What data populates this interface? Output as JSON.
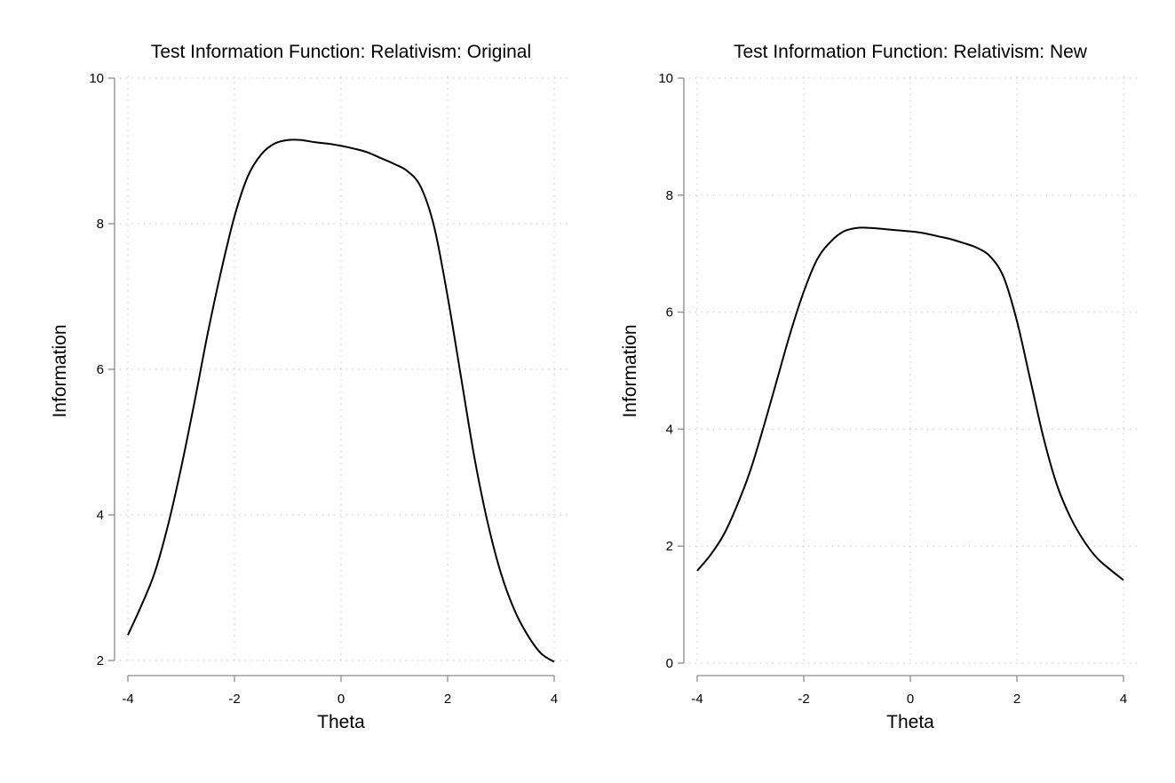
{
  "chart_data": [
    {
      "type": "line",
      "title": "Test Information Function: Relativism: Original",
      "xlabel": "Theta",
      "ylabel": "Information",
      "xlim": [
        -4,
        4
      ],
      "ylim": [
        2,
        10
      ],
      "xticks": [
        -4,
        -2,
        0,
        2,
        4
      ],
      "yticks": [
        2,
        4,
        6,
        8,
        10
      ],
      "xtick_labels": [
        "-4",
        "-2",
        "0",
        "2",
        "4"
      ],
      "ytick_labels": [
        "2",
        "4",
        "6",
        "8",
        "10"
      ],
      "grid": true,
      "x": [
        -4.0,
        -3.75,
        -3.5,
        -3.25,
        -3.0,
        -2.75,
        -2.5,
        -2.25,
        -2.0,
        -1.75,
        -1.5,
        -1.25,
        -1.0,
        -0.75,
        -0.5,
        -0.25,
        0.0,
        0.25,
        0.5,
        0.75,
        1.0,
        1.25,
        1.5,
        1.75,
        2.0,
        2.25,
        2.5,
        2.75,
        3.0,
        3.25,
        3.5,
        3.75,
        4.0
      ],
      "series": [
        {
          "values": [
            2.35,
            2.75,
            3.2,
            3.85,
            4.65,
            5.55,
            6.5,
            7.35,
            8.1,
            8.65,
            8.95,
            9.1,
            9.15,
            9.15,
            9.12,
            9.1,
            9.07,
            9.03,
            8.98,
            8.9,
            8.82,
            8.72,
            8.5,
            7.95,
            7.0,
            5.9,
            4.8,
            3.9,
            3.2,
            2.7,
            2.35,
            2.1,
            1.98
          ]
        }
      ]
    },
    {
      "type": "line",
      "title": "Test Information Function: Relativism: New",
      "xlabel": "Theta",
      "ylabel": "Information",
      "xlim": [
        -4,
        4
      ],
      "ylim": [
        0,
        10
      ],
      "xticks": [
        -4,
        -2,
        0,
        2,
        4
      ],
      "yticks": [
        0,
        2,
        4,
        6,
        8,
        10
      ],
      "xtick_labels": [
        "-4",
        "-2",
        "0",
        "2",
        "4"
      ],
      "ytick_labels": [
        "0",
        "2",
        "4",
        "6",
        "8",
        "10"
      ],
      "grid": true,
      "x": [
        -4.0,
        -3.75,
        -3.5,
        -3.25,
        -3.0,
        -2.75,
        -2.5,
        -2.25,
        -2.0,
        -1.75,
        -1.5,
        -1.25,
        -1.0,
        -0.75,
        -0.5,
        -0.25,
        0.0,
        0.25,
        0.5,
        0.75,
        1.0,
        1.25,
        1.5,
        1.75,
        2.0,
        2.25,
        2.5,
        2.75,
        3.0,
        3.25,
        3.5,
        3.75,
        4.0
      ],
      "series": [
        {
          "values": [
            1.58,
            1.85,
            2.2,
            2.7,
            3.3,
            4.05,
            4.85,
            5.65,
            6.35,
            6.9,
            7.2,
            7.38,
            7.44,
            7.44,
            7.42,
            7.4,
            7.38,
            7.35,
            7.3,
            7.25,
            7.18,
            7.1,
            6.95,
            6.6,
            5.85,
            4.85,
            3.85,
            3.05,
            2.5,
            2.1,
            1.8,
            1.6,
            1.42
          ]
        }
      ]
    }
  ]
}
